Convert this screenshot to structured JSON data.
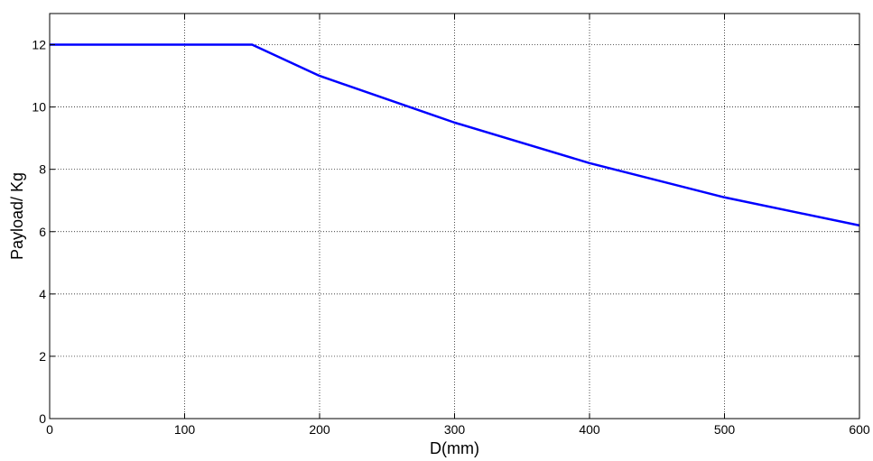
{
  "chart_data": {
    "type": "line",
    "title": "",
    "xlabel": "D(mm)",
    "ylabel": "Payload/ Kg",
    "xlim": [
      0,
      600
    ],
    "ylim": [
      0,
      13
    ],
    "xticks": [
      0,
      100,
      200,
      300,
      400,
      500,
      600
    ],
    "yticks": [
      0,
      2,
      4,
      6,
      8,
      10,
      12
    ],
    "grid": true,
    "series": [
      {
        "color": "#0000ff",
        "x": [
          0,
          150,
          200,
          300,
          400,
          500,
          600
        ],
        "y": [
          12,
          12,
          11,
          9.5,
          8.2,
          7.1,
          6.2
        ]
      }
    ]
  }
}
